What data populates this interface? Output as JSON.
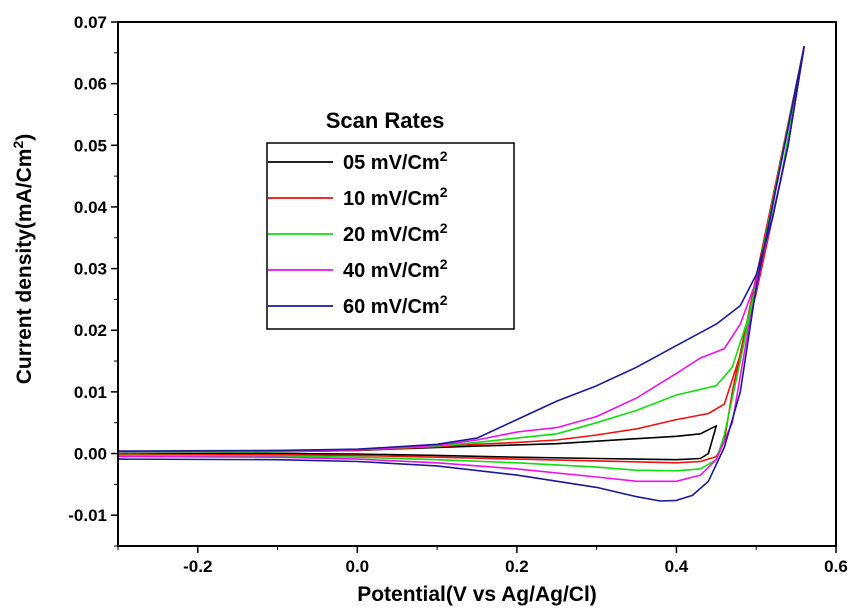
{
  "chart_data": {
    "type": "line",
    "xlabel": "Potential(V vs Ag/Ag/Cl)",
    "ylabel_main": "Current density(mA/Cm",
    "ylabel_sup": "2",
    "ylabel_end": ")",
    "xlim": [
      -0.3,
      0.6
    ],
    "ylim": [
      -0.015,
      0.07
    ],
    "x_ticks": [
      -0.2,
      0.0,
      0.2,
      0.4,
      0.6
    ],
    "x_tick_labels": [
      "-0.2",
      "0.0",
      "0.2",
      "0.4",
      "0.6"
    ],
    "y_ticks": [
      -0.01,
      0.0,
      0.01,
      0.02,
      0.03,
      0.04,
      0.05,
      0.06,
      0.07
    ],
    "y_tick_labels": [
      "-0.01",
      "0.00",
      "0.01",
      "0.02",
      "0.03",
      "0.04",
      "0.05",
      "0.06",
      "0.07"
    ],
    "grid": false,
    "legend": {
      "title": "Scan Rates",
      "position": "upper-left-center"
    },
    "series": [
      {
        "label_main": "05 mV/Cm",
        "label_sup": "2",
        "color": "#000000",
        "forward": [
          [
            -0.3,
            0.0002
          ],
          [
            -0.1,
            0.0003
          ],
          [
            0.0,
            0.0005
          ],
          [
            0.1,
            0.001
          ],
          [
            0.15,
            0.0012
          ],
          [
            0.2,
            0.0014
          ],
          [
            0.25,
            0.0016
          ],
          [
            0.3,
            0.002
          ],
          [
            0.35,
            0.0024
          ],
          [
            0.4,
            0.0028
          ],
          [
            0.43,
            0.0032
          ],
          [
            0.45,
            0.0045
          ]
        ],
        "reverse": [
          [
            0.45,
            0.0045
          ],
          [
            0.44,
            0.0
          ],
          [
            0.43,
            -0.0008
          ],
          [
            0.4,
            -0.001
          ],
          [
            0.3,
            -0.0008
          ],
          [
            0.2,
            -0.0006
          ],
          [
            0.1,
            -0.0003
          ],
          [
            0.0,
            -0.0001
          ],
          [
            -0.1,
            0.0
          ],
          [
            -0.3,
            0.0001
          ]
        ]
      },
      {
        "label_main": "10 mV/Cm",
        "label_sup": "2",
        "color": "#ee1111",
        "forward": [
          [
            -0.3,
            0.0002
          ],
          [
            -0.1,
            0.0003
          ],
          [
            0.0,
            0.0005
          ],
          [
            0.1,
            0.0011
          ],
          [
            0.15,
            0.0015
          ],
          [
            0.2,
            0.0018
          ],
          [
            0.25,
            0.0022
          ],
          [
            0.3,
            0.003
          ],
          [
            0.35,
            0.004
          ],
          [
            0.4,
            0.0055
          ],
          [
            0.44,
            0.0065
          ],
          [
            0.46,
            0.008
          ],
          [
            0.48,
            0.016
          ],
          [
            0.5,
            0.026
          ],
          [
            0.52,
            0.038
          ],
          [
            0.54,
            0.05
          ],
          [
            0.56,
            0.066
          ]
        ],
        "reverse": [
          [
            0.47,
            0.01
          ],
          [
            0.46,
            0.002
          ],
          [
            0.45,
            -0.0005
          ],
          [
            0.43,
            -0.0013
          ],
          [
            0.4,
            -0.0015
          ],
          [
            0.3,
            -0.0012
          ],
          [
            0.2,
            -0.0009
          ],
          [
            0.1,
            -0.0006
          ],
          [
            0.0,
            -0.0003
          ],
          [
            -0.1,
            -0.0002
          ],
          [
            -0.3,
            -0.0002
          ]
        ]
      },
      {
        "label_main": "20 mV/Cm",
        "label_sup": "2",
        "color": "#11dd11",
        "forward": [
          [
            -0.3,
            0.0002
          ],
          [
            -0.1,
            0.0003
          ],
          [
            0.0,
            0.0006
          ],
          [
            0.1,
            0.0012
          ],
          [
            0.15,
            0.0018
          ],
          [
            0.2,
            0.0025
          ],
          [
            0.25,
            0.0032
          ],
          [
            0.3,
            0.005
          ],
          [
            0.35,
            0.007
          ],
          [
            0.4,
            0.0095
          ],
          [
            0.45,
            0.011
          ],
          [
            0.47,
            0.014
          ],
          [
            0.49,
            0.022
          ],
          [
            0.51,
            0.033
          ],
          [
            0.53,
            0.044
          ],
          [
            0.56,
            0.066
          ]
        ],
        "reverse": [
          [
            0.48,
            0.015
          ],
          [
            0.46,
            0.003
          ],
          [
            0.45,
            -0.001
          ],
          [
            0.43,
            -0.0025
          ],
          [
            0.4,
            -0.0028
          ],
          [
            0.35,
            -0.0027
          ],
          [
            0.3,
            -0.0022
          ],
          [
            0.2,
            -0.0015
          ],
          [
            0.1,
            -0.001
          ],
          [
            0.0,
            -0.0006
          ],
          [
            -0.1,
            -0.0004
          ],
          [
            -0.3,
            -0.0003
          ]
        ]
      },
      {
        "label_main": "40 mV/Cm",
        "label_sup": "2",
        "color": "#ee11ee",
        "forward": [
          [
            -0.3,
            0.0003
          ],
          [
            -0.1,
            0.0004
          ],
          [
            0.0,
            0.0006
          ],
          [
            0.1,
            0.0013
          ],
          [
            0.15,
            0.0022
          ],
          [
            0.2,
            0.0035
          ],
          [
            0.25,
            0.0042
          ],
          [
            0.3,
            0.006
          ],
          [
            0.35,
            0.009
          ],
          [
            0.4,
            0.013
          ],
          [
            0.43,
            0.0155
          ],
          [
            0.46,
            0.017
          ],
          [
            0.48,
            0.021
          ],
          [
            0.5,
            0.028
          ],
          [
            0.52,
            0.038
          ],
          [
            0.54,
            0.05
          ],
          [
            0.56,
            0.066
          ]
        ],
        "reverse": [
          [
            0.49,
            0.02
          ],
          [
            0.47,
            0.005
          ],
          [
            0.45,
            -0.001
          ],
          [
            0.43,
            -0.0035
          ],
          [
            0.4,
            -0.0045
          ],
          [
            0.35,
            -0.0045
          ],
          [
            0.3,
            -0.0038
          ],
          [
            0.2,
            -0.0025
          ],
          [
            0.1,
            -0.0015
          ],
          [
            0.0,
            -0.0009
          ],
          [
            -0.1,
            -0.0006
          ],
          [
            -0.3,
            -0.0005
          ]
        ]
      },
      {
        "label_main": "60 mV/Cm",
        "label_sup": "2",
        "color": "#1a1a99",
        "forward": [
          [
            -0.3,
            0.0004
          ],
          [
            -0.1,
            0.0005
          ],
          [
            0.0,
            0.0007
          ],
          [
            0.1,
            0.0015
          ],
          [
            0.15,
            0.0025
          ],
          [
            0.2,
            0.0055
          ],
          [
            0.25,
            0.0085
          ],
          [
            0.3,
            0.011
          ],
          [
            0.35,
            0.014
          ],
          [
            0.4,
            0.0175
          ],
          [
            0.45,
            0.021
          ],
          [
            0.48,
            0.024
          ],
          [
            0.5,
            0.029
          ],
          [
            0.52,
            0.038
          ],
          [
            0.54,
            0.05
          ],
          [
            0.56,
            0.066
          ]
        ],
        "reverse": [
          [
            0.5,
            0.027
          ],
          [
            0.48,
            0.01
          ],
          [
            0.46,
            0.001
          ],
          [
            0.44,
            -0.0045
          ],
          [
            0.42,
            -0.0068
          ],
          [
            0.4,
            -0.0076
          ],
          [
            0.38,
            -0.0077
          ],
          [
            0.35,
            -0.007
          ],
          [
            0.3,
            -0.0055
          ],
          [
            0.2,
            -0.0035
          ],
          [
            0.1,
            -0.002
          ],
          [
            0.0,
            -0.0013
          ],
          [
            -0.1,
            -0.001
          ],
          [
            -0.3,
            -0.0009
          ]
        ]
      }
    ]
  }
}
